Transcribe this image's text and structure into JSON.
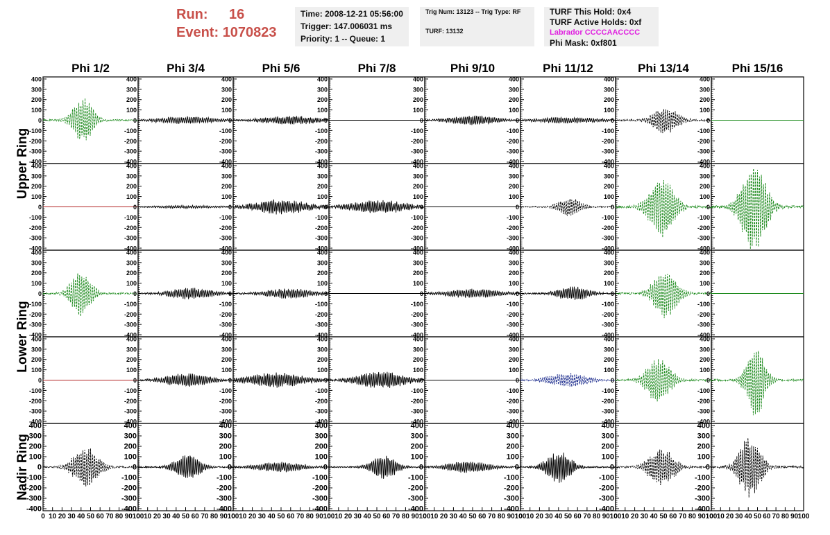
{
  "header": {
    "run_label": "Run:",
    "run_value": "16",
    "event_label": "Event:",
    "event_value": "1070823",
    "time": "Time: 2008-12-21 05:56:00",
    "trigger": "Trigger: 147.006031 ms",
    "priority": "Priority: 1 -- Queue: 1",
    "trig_num": "Trig Num: 13123 -- Trig Type: RF",
    "turf": "TURF: 13132",
    "turf_hold": "TURF This Hold: 0x4",
    "turf_active": "TURF Active Holds: 0xf",
    "labrador": "Labrador CCCCAACCCC",
    "phi_mask": "Phi Mask: 0xf801"
  },
  "colors": {
    "run_text": "#c8504a",
    "info_bg": "#efefef",
    "labrador_text": "#e020e0",
    "trace_black": "#000000",
    "trace_green": "#1c8a1c",
    "trace_red": "#b22222",
    "trace_blue": "#1a2a8c"
  },
  "chart_data": {
    "type": "line",
    "columns": [
      "Phi 1/2",
      "Phi 3/4",
      "Phi 5/6",
      "Phi 7/8",
      "Phi 9/10",
      "Phi 11/12",
      "Phi 13/14",
      "Phi 15/16"
    ],
    "ring_labels": [
      "Upper Ring",
      "Lower Ring",
      "Nadir Ring"
    ],
    "ring_row_spans": [
      [
        0,
        2
      ],
      [
        2,
        4
      ],
      [
        4,
        5
      ]
    ],
    "xlim": [
      0,
      100
    ],
    "ylim": [
      -420,
      420
    ],
    "x_ticks": [
      "0",
      "10",
      "20",
      "30",
      "40",
      "50",
      "60",
      "70",
      "80",
      "90",
      "100"
    ],
    "y_ticks": [
      "400",
      "300",
      "200",
      "100",
      "0",
      "-100",
      "-200",
      "-300",
      "-400"
    ],
    "y_tick_values": [
      400,
      300,
      200,
      100,
      0,
      -100,
      -200,
      -300,
      -400
    ],
    "grid": false,
    "waveforms": [
      [
        {
          "color": "green",
          "dashed": true,
          "amp": 190,
          "center": 42,
          "width": 13,
          "period": 2.2,
          "noise": 15,
          "seed": 1
        },
        {
          "color": "black",
          "dashed": false,
          "amp": 28,
          "center": 50,
          "width": 40,
          "period": 2.0,
          "noise": 10,
          "seed": 2
        },
        {
          "color": "black",
          "dashed": false,
          "amp": 35,
          "center": 60,
          "width": 35,
          "period": 1.8,
          "noise": 12,
          "seed": 3
        },
        {
          "color": "black",
          "dashed": false,
          "amp": 0,
          "center": 50,
          "width": 20,
          "period": 2.0,
          "noise": 0,
          "seed": 4
        },
        {
          "color": "black",
          "dashed": false,
          "amp": 40,
          "center": 50,
          "width": 30,
          "period": 1.9,
          "noise": 10,
          "seed": 5
        },
        {
          "color": "black",
          "dashed": false,
          "amp": 25,
          "center": 50,
          "width": 40,
          "period": 2.0,
          "noise": 8,
          "seed": 6
        },
        {
          "color": "black",
          "dashed": true,
          "amp": 110,
          "center": 52,
          "width": 16,
          "period": 2.0,
          "noise": 15,
          "seed": 7
        },
        {
          "color": "green",
          "dashed": false,
          "amp": 0,
          "center": 50,
          "width": 20,
          "period": 2.0,
          "noise": 0,
          "seed": 8
        }
      ],
      [
        {
          "color": "red",
          "dashed": false,
          "amp": 0,
          "center": 50,
          "width": 20,
          "period": 2.0,
          "noise": 0,
          "seed": 9
        },
        {
          "color": "black",
          "dashed": false,
          "amp": 12,
          "center": 50,
          "width": 45,
          "period": 2.0,
          "noise": 5,
          "seed": 10
        },
        {
          "color": "black",
          "dashed": false,
          "amp": 60,
          "center": 50,
          "width": 35,
          "period": 1.8,
          "noise": 15,
          "seed": 11
        },
        {
          "color": "black",
          "dashed": false,
          "amp": 55,
          "center": 52,
          "width": 35,
          "period": 1.8,
          "noise": 15,
          "seed": 12
        },
        {
          "color": "black",
          "dashed": false,
          "amp": 0,
          "center": 50,
          "width": 20,
          "period": 2.0,
          "noise": 0,
          "seed": 13
        },
        {
          "color": "black",
          "dashed": true,
          "amp": 80,
          "center": 52,
          "width": 14,
          "period": 2.0,
          "noise": 10,
          "seed": 14
        },
        {
          "color": "green",
          "dashed": true,
          "amp": 250,
          "center": 48,
          "width": 16,
          "period": 2.2,
          "noise": 20,
          "seed": 15
        },
        {
          "color": "green",
          "dashed": true,
          "amp": 380,
          "center": 46,
          "width": 16,
          "period": 2.2,
          "noise": 25,
          "seed": 16
        }
      ],
      [
        {
          "color": "green",
          "dashed": true,
          "amp": 200,
          "center": 40,
          "width": 13,
          "period": 2.2,
          "noise": 15,
          "seed": 17
        },
        {
          "color": "black",
          "dashed": false,
          "amp": 45,
          "center": 55,
          "width": 28,
          "period": 1.9,
          "noise": 12,
          "seed": 18
        },
        {
          "color": "black",
          "dashed": false,
          "amp": 40,
          "center": 58,
          "width": 30,
          "period": 1.9,
          "noise": 12,
          "seed": 19
        },
        {
          "color": "black",
          "dashed": false,
          "amp": 0,
          "center": 50,
          "width": 20,
          "period": 2.0,
          "noise": 0,
          "seed": 20
        },
        {
          "color": "black",
          "dashed": false,
          "amp": 35,
          "center": 50,
          "width": 35,
          "period": 1.9,
          "noise": 10,
          "seed": 21
        },
        {
          "color": "black",
          "dashed": false,
          "amp": 60,
          "center": 55,
          "width": 20,
          "period": 1.9,
          "noise": 12,
          "seed": 22
        },
        {
          "color": "green",
          "dashed": true,
          "amp": 200,
          "center": 52,
          "width": 15,
          "period": 2.2,
          "noise": 18,
          "seed": 23
        },
        {
          "color": "green",
          "dashed": false,
          "amp": 0,
          "center": 50,
          "width": 20,
          "period": 2.0,
          "noise": 0,
          "seed": 24
        }
      ],
      [
        {
          "color": "red",
          "dashed": false,
          "amp": 0,
          "center": 50,
          "width": 20,
          "period": 2.0,
          "noise": 0,
          "seed": 25
        },
        {
          "color": "black",
          "dashed": false,
          "amp": 55,
          "center": 52,
          "width": 28,
          "period": 1.9,
          "noise": 12,
          "seed": 26
        },
        {
          "color": "black",
          "dashed": false,
          "amp": 60,
          "center": 45,
          "width": 35,
          "period": 1.8,
          "noise": 15,
          "seed": 27
        },
        {
          "color": "black",
          "dashed": false,
          "amp": 70,
          "center": 55,
          "width": 30,
          "period": 1.8,
          "noise": 15,
          "seed": 28
        },
        {
          "color": "black",
          "dashed": false,
          "amp": 0,
          "center": 50,
          "width": 20,
          "period": 2.0,
          "noise": 0,
          "seed": 29
        },
        {
          "color": "blue",
          "dashed": true,
          "amp": 60,
          "center": 50,
          "width": 25,
          "period": 2.0,
          "noise": 10,
          "seed": 30
        },
        {
          "color": "green",
          "dashed": true,
          "amp": 190,
          "center": 45,
          "width": 15,
          "period": 2.2,
          "noise": 18,
          "seed": 31
        },
        {
          "color": "green",
          "dashed": true,
          "amp": 300,
          "center": 48,
          "width": 12,
          "period": 2.2,
          "noise": 20,
          "seed": 32
        }
      ],
      [
        {
          "color": "black",
          "dashed": true,
          "amp": 170,
          "center": 45,
          "width": 16,
          "period": 2.0,
          "noise": 15,
          "seed": 33
        },
        {
          "color": "black",
          "dashed": false,
          "amp": 110,
          "center": 52,
          "width": 16,
          "period": 1.9,
          "noise": 12,
          "seed": 34
        },
        {
          "color": "black",
          "dashed": false,
          "amp": 40,
          "center": 50,
          "width": 30,
          "period": 1.9,
          "noise": 10,
          "seed": 35
        },
        {
          "color": "black",
          "dashed": false,
          "amp": 100,
          "center": 58,
          "width": 16,
          "period": 1.9,
          "noise": 12,
          "seed": 36
        },
        {
          "color": "black",
          "dashed": false,
          "amp": 45,
          "center": 45,
          "width": 28,
          "period": 1.9,
          "noise": 10,
          "seed": 37
        },
        {
          "color": "black",
          "dashed": false,
          "amp": 130,
          "center": 40,
          "width": 16,
          "period": 1.8,
          "noise": 12,
          "seed": 38
        },
        {
          "color": "black",
          "dashed": true,
          "amp": 160,
          "center": 48,
          "width": 16,
          "period": 2.0,
          "noise": 15,
          "seed": 39
        },
        {
          "color": "black",
          "dashed": true,
          "amp": 270,
          "center": 42,
          "width": 14,
          "period": 2.0,
          "noise": 20,
          "seed": 40
        }
      ]
    ]
  }
}
